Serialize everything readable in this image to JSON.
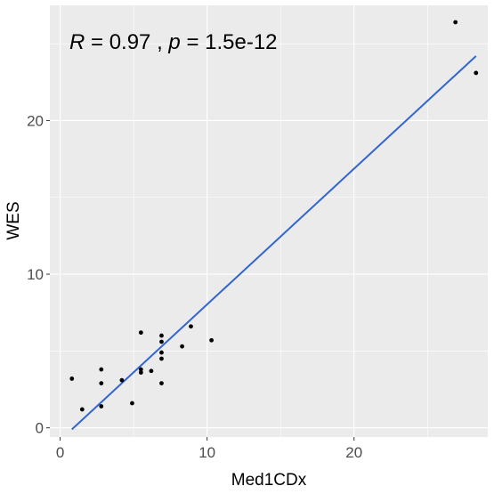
{
  "chart_data": {
    "type": "scatter",
    "xlabel": "Med1CDx",
    "ylabel": "WES",
    "xlim": [
      -0.7,
      29.1
    ],
    "ylim": [
      -0.6,
      27.5
    ],
    "x_ticks": [
      0,
      10,
      20
    ],
    "y_ticks": [
      0,
      10,
      20
    ],
    "grid": true,
    "annotation": {
      "r_symbol": "R",
      "r_value": " = 0.97 , ",
      "p_symbol": "p",
      "p_value": " = 1.5e-12"
    },
    "points": [
      {
        "x": 0.8,
        "y": 3.2
      },
      {
        "x": 1.5,
        "y": 1.2
      },
      {
        "x": 2.8,
        "y": 3.8
      },
      {
        "x": 2.8,
        "y": 2.9
      },
      {
        "x": 2.8,
        "y": 1.4
      },
      {
        "x": 4.2,
        "y": 3.1
      },
      {
        "x": 4.9,
        "y": 1.6
      },
      {
        "x": 5.5,
        "y": 6.2
      },
      {
        "x": 5.5,
        "y": 3.8
      },
      {
        "x": 5.5,
        "y": 3.6
      },
      {
        "x": 6.2,
        "y": 3.7
      },
      {
        "x": 6.9,
        "y": 6.0
      },
      {
        "x": 6.9,
        "y": 5.6
      },
      {
        "x": 6.9,
        "y": 4.9
      },
      {
        "x": 6.9,
        "y": 4.5
      },
      {
        "x": 6.9,
        "y": 2.9
      },
      {
        "x": 8.3,
        "y": 5.3
      },
      {
        "x": 8.9,
        "y": 6.6
      },
      {
        "x": 10.3,
        "y": 5.7
      },
      {
        "x": 26.9,
        "y": 26.4
      },
      {
        "x": 28.3,
        "y": 23.1
      }
    ],
    "fit_line": {
      "x": [
        0.8,
        28.3
      ],
      "y": [
        -0.1,
        24.2
      ]
    },
    "colors": {
      "panel_bg": "#ebebeb",
      "grid": "#ffffff",
      "points": "#000000",
      "fit_line": "#3366cc",
      "tick_text": "#4d4d4d",
      "tick_mark": "#333333"
    }
  }
}
